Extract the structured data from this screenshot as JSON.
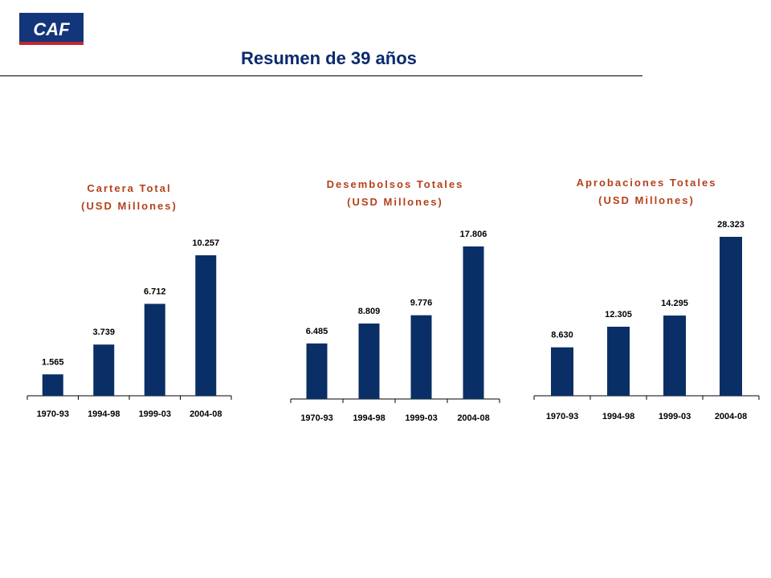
{
  "header": {
    "logo_text": "CAF",
    "title": "Resumen de 39 años"
  },
  "colors": {
    "bar": "#0a2f66",
    "chart_title": "#b5401a",
    "page_title": "#0a2a6e"
  },
  "chart_data": [
    {
      "type": "bar",
      "title": "Cartera Total",
      "subtitle": "(USD Millones)",
      "categories": [
        "1970-93",
        "1994-98",
        "1999-03",
        "2004-08"
      ],
      "values": [
        1565,
        3739,
        6712,
        10257
      ],
      "value_labels": [
        "1.565",
        "3.739",
        "6.712",
        "10.257"
      ]
    },
    {
      "type": "bar",
      "title": "Desembolsos Totales",
      "subtitle": "(USD Millones)",
      "categories": [
        "1970-93",
        "1994-98",
        "1999-03",
        "2004-08"
      ],
      "values": [
        6485,
        8809,
        9776,
        17806
      ],
      "value_labels": [
        "6.485",
        "8.809",
        "9.776",
        "17.806"
      ]
    },
    {
      "type": "bar",
      "title": "Aprobaciones Totales",
      "subtitle": "(USD Millones)",
      "categories": [
        "1970-93",
        "1994-98",
        "1999-03",
        "2004-08"
      ],
      "values": [
        8630,
        12305,
        14295,
        28323
      ],
      "value_labels": [
        "8.630",
        "12.305",
        "14.295",
        "28.323"
      ]
    }
  ]
}
